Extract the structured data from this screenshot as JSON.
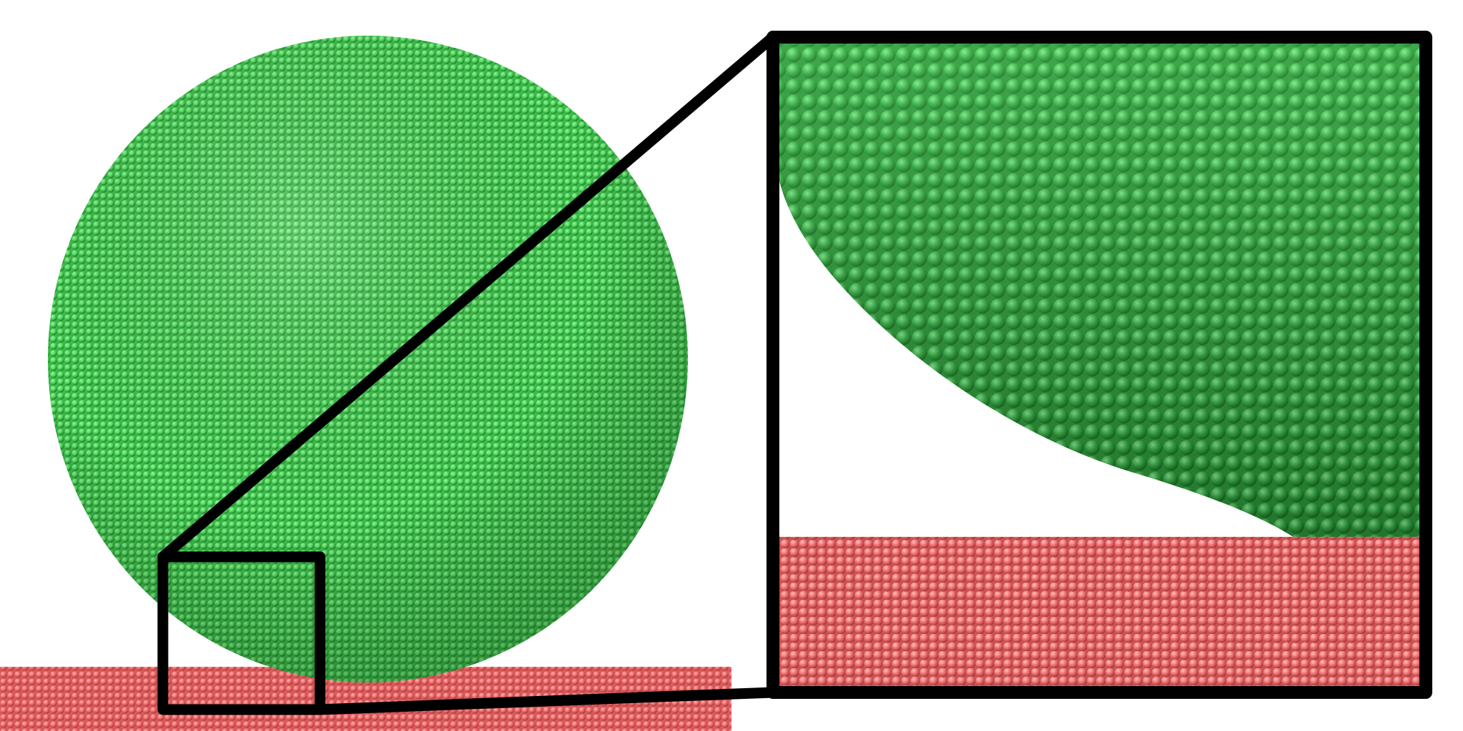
{
  "figure": {
    "particle_sphere": {
      "color": "#4fdc5c",
      "shade": "#2a9a36"
    },
    "substrate": {
      "color": "#f06a6a",
      "shade": "#b84545"
    },
    "zoom_frame": {
      "color": "#000000"
    },
    "inset": {
      "background": "#ffffff"
    }
  }
}
